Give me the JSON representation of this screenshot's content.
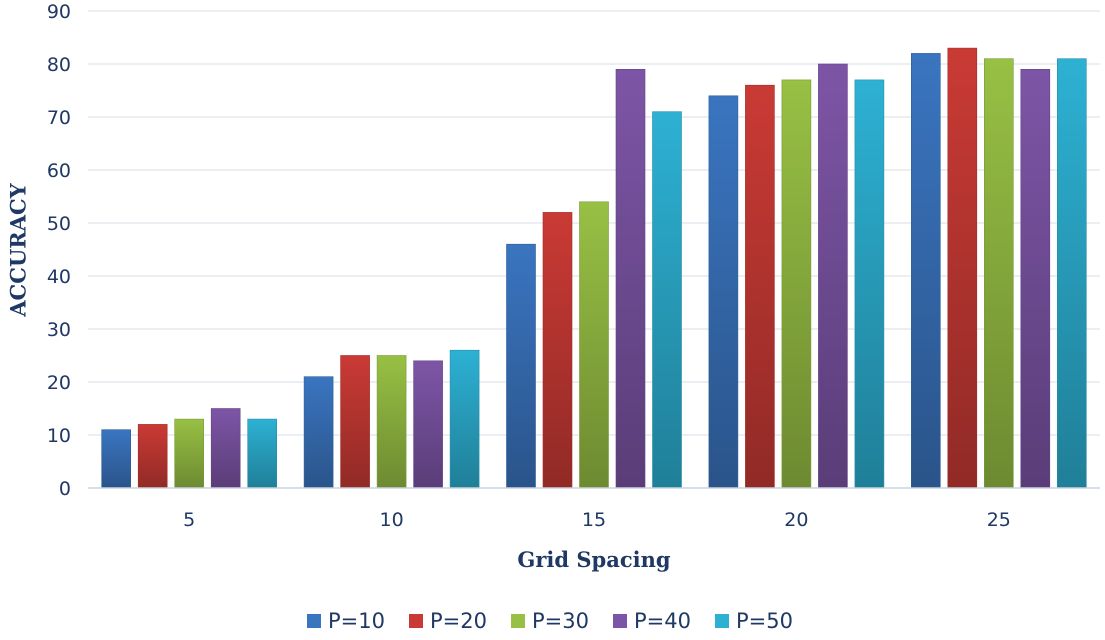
{
  "chart_data": {
    "type": "bar",
    "title": "",
    "xlabel": "Grid Spacing",
    "ylabel": "ACCURACY",
    "categories": [
      "5",
      "10",
      "15",
      "20",
      "25"
    ],
    "ylim": [
      0,
      90
    ],
    "yticks": [
      0,
      10,
      20,
      30,
      40,
      50,
      60,
      70,
      80,
      90
    ],
    "grid": true,
    "legend_position": "bottom",
    "series": [
      {
        "name": "P=10",
        "color": "#3A75C0",
        "values": [
          11,
          21,
          46,
          74,
          82
        ]
      },
      {
        "name": "P=20",
        "color": "#CA3A35",
        "values": [
          12,
          25,
          52,
          76,
          83
        ]
      },
      {
        "name": "P=30",
        "color": "#98C044",
        "values": [
          13,
          25,
          54,
          77,
          81
        ]
      },
      {
        "name": "P=40",
        "color": "#7D55A6",
        "values": [
          15,
          24,
          79,
          80,
          79
        ]
      },
      {
        "name": "P=50",
        "color": "#2DB1D3",
        "values": [
          13,
          26,
          71,
          77,
          81
        ]
      }
    ]
  }
}
